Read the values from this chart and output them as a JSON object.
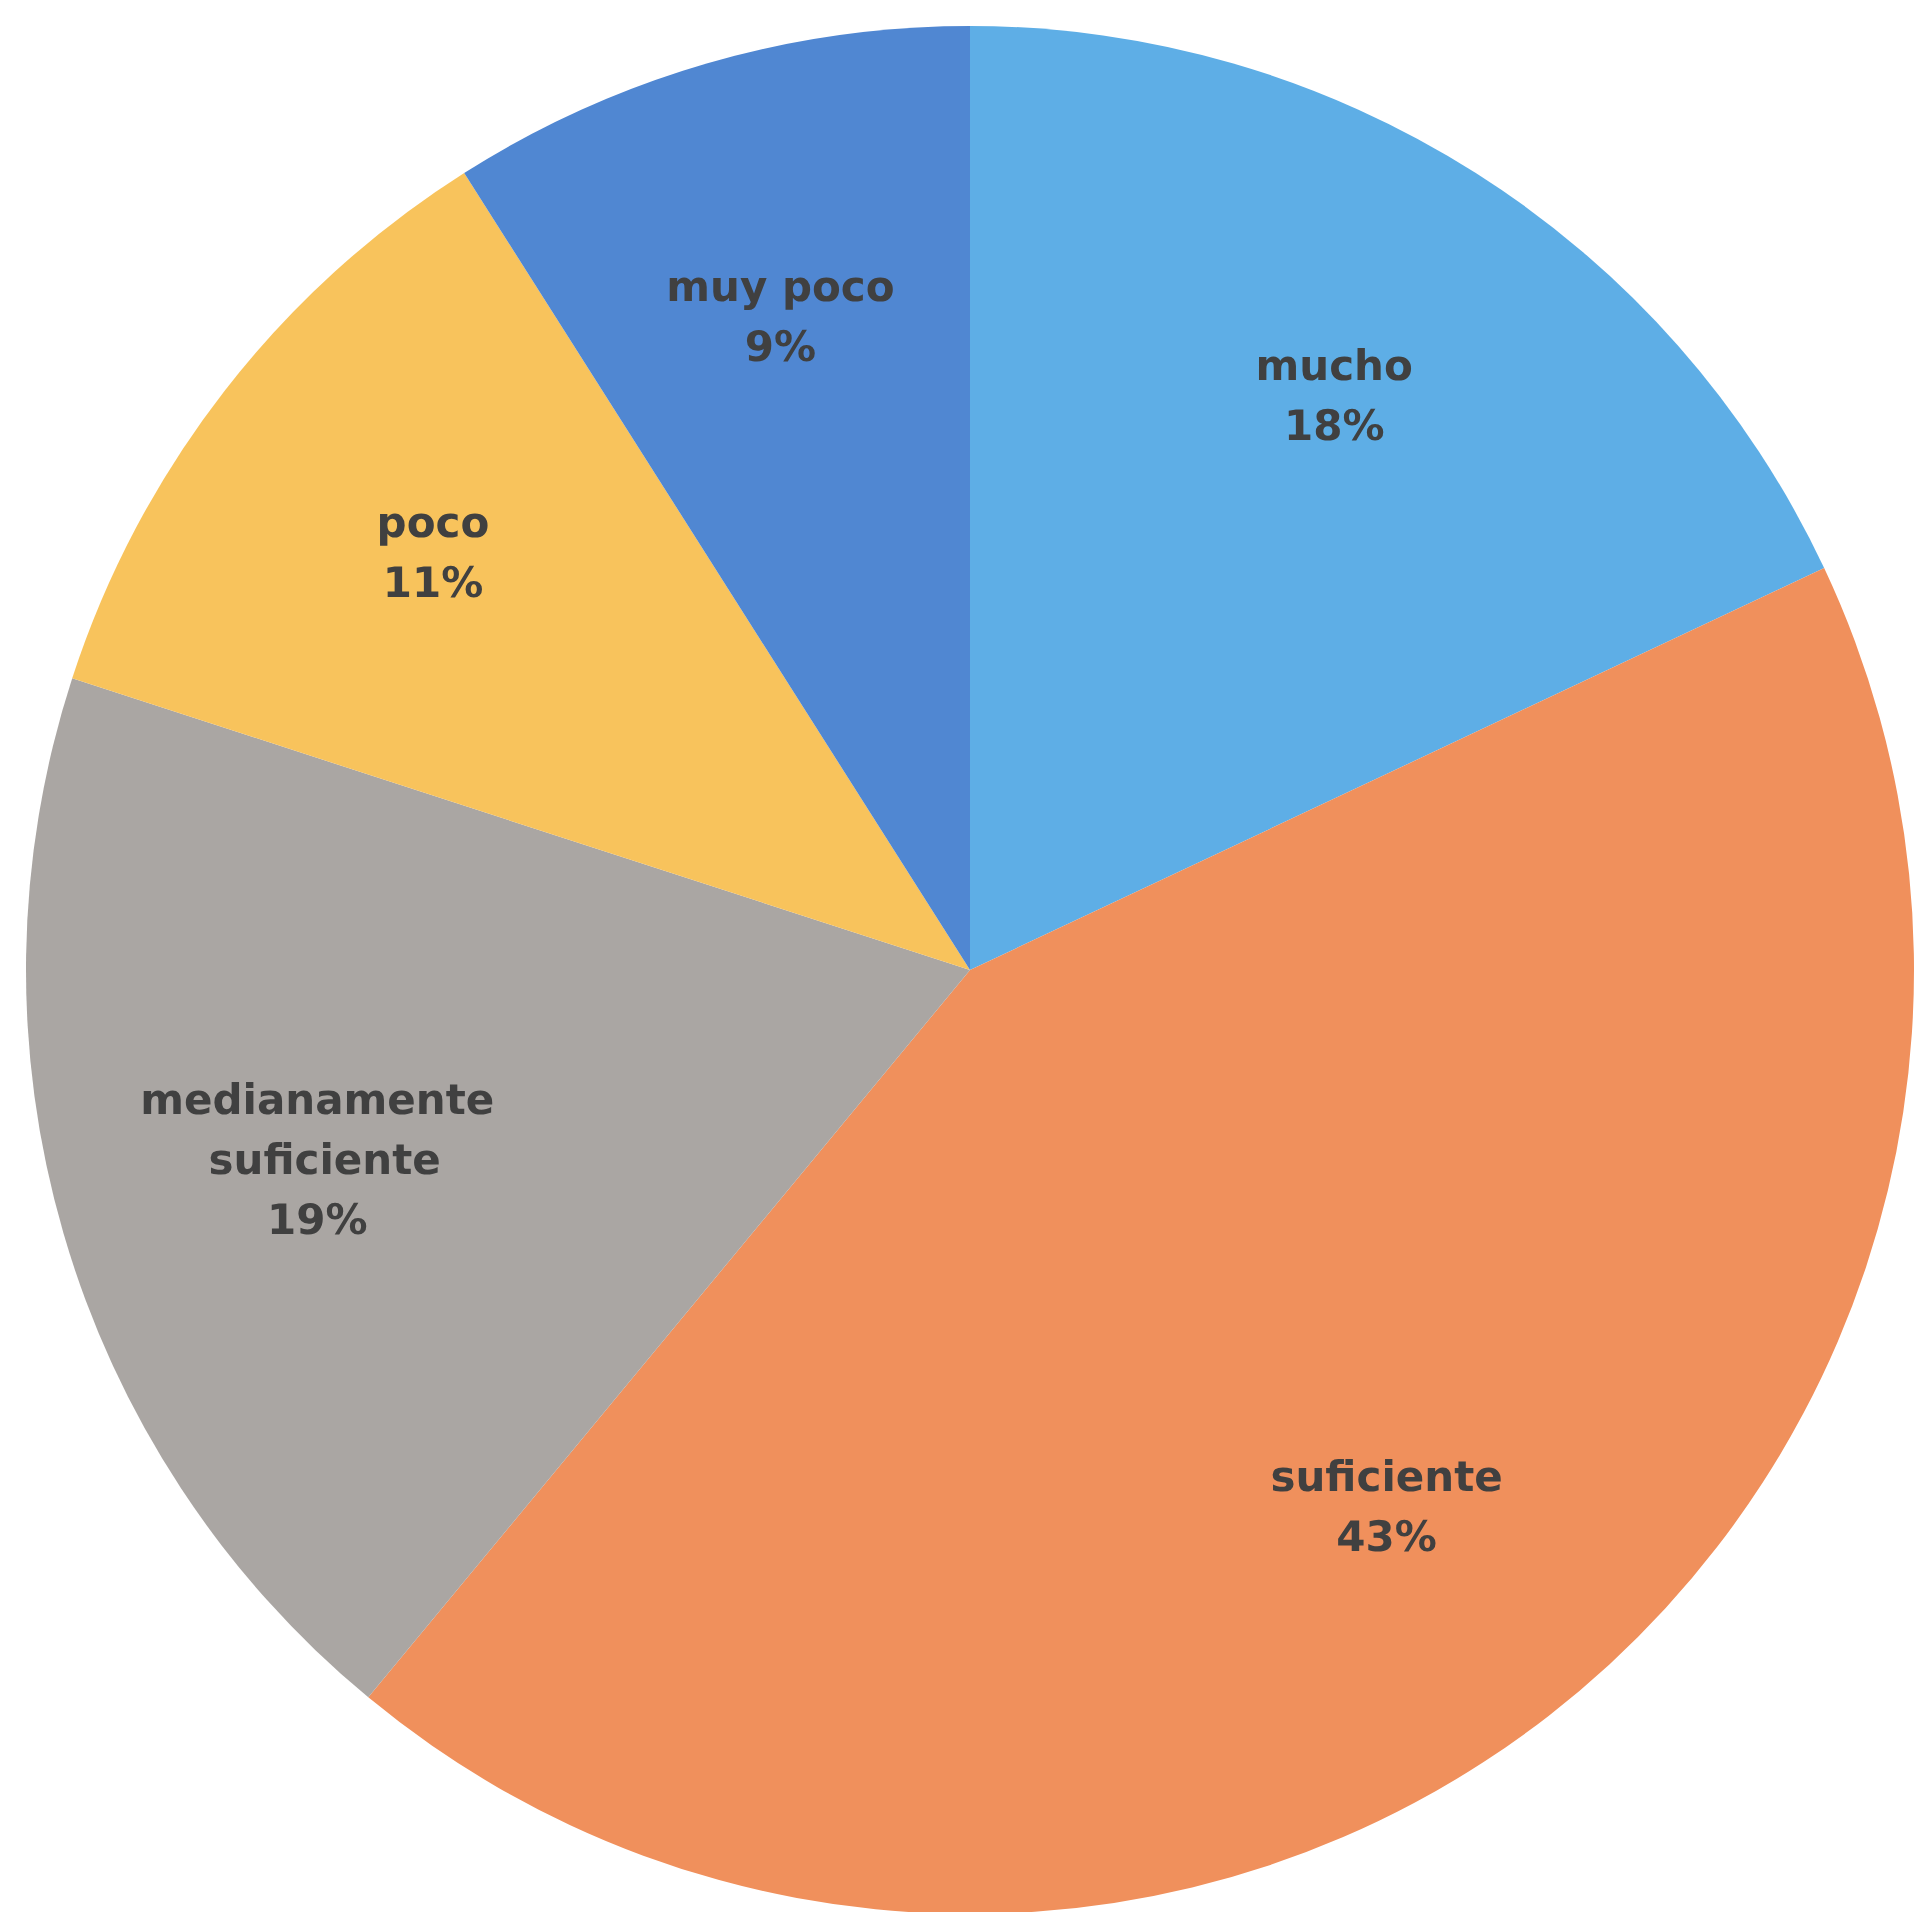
{
  "chart_data": {
    "type": "pie",
    "categories": [
      "mucho",
      "suficiente",
      "medianamente suficiente",
      "poco",
      "muy poco"
    ],
    "values": [
      18,
      43,
      19,
      11,
      9
    ],
    "value_labels": [
      "18%",
      "43%",
      "19%",
      "11%",
      "9%"
    ],
    "colors": [
      "#5eaee6",
      "#f0905c",
      "#aaa6a3",
      "#f8c35c",
      "#5087d2"
    ]
  }
}
